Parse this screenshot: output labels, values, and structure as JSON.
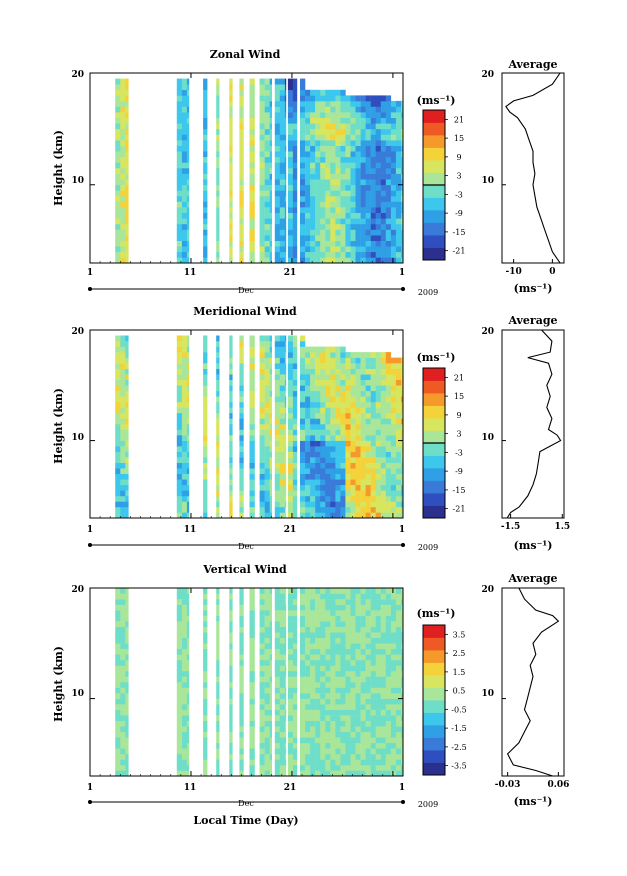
{
  "figure": {
    "xlabel": "Local Time (Day)",
    "month_label": "Dec",
    "year_label": "2009",
    "x_ticks": [
      "1",
      "11",
      "21",
      "1"
    ],
    "y_label": "Height (km)",
    "y_ticks": [
      "20",
      "10"
    ],
    "units": "(ms⁻¹)",
    "profile_title": "Average"
  },
  "colors": {
    "gap": "#ffffff",
    "colormap": [
      "#2b2f8e",
      "#2f4fc0",
      "#3a7ad8",
      "#2f9fe6",
      "#3ec7ec",
      "#6fdec8",
      "#a9e69a",
      "#d8e65f",
      "#f3d23a",
      "#f59a2a",
      "#ef5a24",
      "#e02020"
    ]
  },
  "chart_data": [
    {
      "type": "heatmap",
      "title": "Zonal Wind",
      "xlim": [
        1,
        32
      ],
      "ylim": [
        3,
        20
      ],
      "colorbar_ticks": [
        "21",
        "15",
        "9",
        "3",
        "-3",
        "-9",
        "-15",
        "-21"
      ],
      "colorbar_range": [
        -24,
        24
      ],
      "data_days": [
        [
          3.5,
          4.8
        ],
        [
          9.6,
          10.8
        ],
        [
          12.2,
          12.6
        ],
        [
          13.5,
          13.8
        ],
        [
          14.8,
          15.1
        ],
        [
          15.8,
          16.2
        ],
        [
          16.8,
          17.3
        ],
        [
          17.8,
          19.0
        ],
        [
          19.3,
          20.4
        ],
        [
          20.6,
          21.5
        ],
        [
          21.8,
          32
        ]
      ],
      "profile": {
        "xlim": [
          -13,
          3
        ],
        "x_ticks": [
          "-10",
          "0"
        ],
        "x_tick_values": [
          -10,
          0
        ],
        "xlabel": "(ms⁻¹)",
        "heights": [
          3,
          4,
          5,
          6,
          7,
          8,
          9,
          10,
          11,
          12,
          13,
          14,
          15,
          16,
          16.5,
          17,
          17.5,
          18,
          19,
          20
        ],
        "values": [
          2,
          0,
          -1,
          -2,
          -3,
          -4,
          -4.5,
          -5,
          -4.5,
          -5,
          -5,
          -6,
          -7,
          -9,
          -11,
          -12,
          -10,
          -5,
          0,
          2
        ]
      }
    },
    {
      "type": "heatmap",
      "title": "Meridional Wind",
      "xlim": [
        1,
        32
      ],
      "ylim": [
        3,
        20
      ],
      "colorbar_ticks": [
        "21",
        "15",
        "9",
        "3",
        "-3",
        "-9",
        "-15",
        "-21"
      ],
      "colorbar_range": [
        -24,
        24
      ],
      "data_days": [
        [
          3.5,
          4.8
        ],
        [
          9.6,
          10.8
        ],
        [
          12.2,
          12.6
        ],
        [
          13.5,
          13.8
        ],
        [
          14.8,
          15.1
        ],
        [
          15.8,
          16.2
        ],
        [
          16.8,
          17.3
        ],
        [
          17.8,
          19.0
        ],
        [
          19.3,
          20.4
        ],
        [
          20.6,
          21.5
        ],
        [
          21.8,
          32
        ]
      ],
      "profile": {
        "xlim": [
          -2,
          1.6
        ],
        "x_ticks": [
          "-1.5",
          "1.5"
        ],
        "x_tick_values": [
          -1.5,
          1.5
        ],
        "xlabel": "(ms⁻¹)",
        "heights": [
          3,
          3.5,
          4,
          5,
          6,
          7,
          8,
          9,
          9.5,
          10,
          10.5,
          11,
          12,
          13,
          14,
          15,
          16,
          17,
          17.5,
          18,
          19,
          20
        ],
        "values": [
          -1.7,
          -1.5,
          -1.0,
          -0.5,
          -0.2,
          0.0,
          0.1,
          0.2,
          0.8,
          1.4,
          1.2,
          0.7,
          0.9,
          0.6,
          0.8,
          0.6,
          0.9,
          0.7,
          -0.5,
          0.8,
          0.9,
          0.3
        ]
      }
    },
    {
      "type": "heatmap",
      "title": "Vertical Wind",
      "xlim": [
        1,
        32
      ],
      "ylim": [
        3,
        20
      ],
      "colorbar_ticks": [
        "3.5",
        "2.5",
        "1.5",
        "0.5",
        "-0.5",
        "-1.5",
        "-2.5",
        "-3.5"
      ],
      "colorbar_range": [
        -4,
        4
      ],
      "data_days": [
        [
          3.5,
          4.8
        ],
        [
          9.6,
          10.8
        ],
        [
          12.2,
          12.6
        ],
        [
          13.5,
          13.8
        ],
        [
          14.8,
          15.1
        ],
        [
          15.8,
          16.2
        ],
        [
          16.8,
          17.3
        ],
        [
          17.8,
          19.0
        ],
        [
          19.3,
          20.4
        ],
        [
          20.6,
          21.5
        ],
        [
          21.8,
          32
        ]
      ],
      "profile": {
        "xlim": [
          -0.04,
          0.07
        ],
        "x_ticks": [
          "-0.03",
          "0.06"
        ],
        "x_tick_values": [
          -0.03,
          0.06
        ],
        "xlabel": "(ms⁻¹)",
        "heights": [
          3,
          3.5,
          4,
          5,
          6,
          7,
          8,
          9,
          10,
          11,
          12,
          13,
          14,
          15,
          16,
          17,
          17.5,
          18,
          19,
          20
        ],
        "values": [
          0.05,
          0.02,
          -0.02,
          -0.03,
          -0.01,
          0.0,
          0.01,
          0.0,
          0.005,
          0.01,
          0.015,
          0.01,
          0.02,
          0.015,
          0.03,
          0.06,
          0.05,
          0.02,
          0.0,
          -0.01
        ]
      }
    }
  ]
}
